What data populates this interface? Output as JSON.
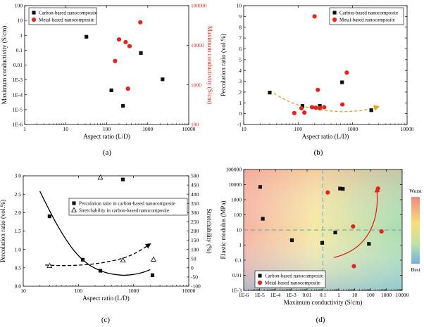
{
  "colors": {
    "black": "#111111",
    "red": "#e1261c",
    "orange": "#e8a317",
    "guide": "#5aa0b8"
  },
  "chart_data": [
    {
      "panel": "a",
      "caption": "(a)",
      "type": "scatter",
      "xlabel": "Aspect ratio (L/D)",
      "ylabel": "Maximum conductivity (S/cm)",
      "y2label": "Maximum conductivity (S/cm)",
      "xscale": "log",
      "xlim": [
        1,
        10000
      ],
      "xticks": [
        {
          "v": 1,
          "t": "1"
        },
        {
          "v": 10,
          "t": "10"
        },
        {
          "v": 100,
          "t": "100"
        },
        {
          "v": 1000,
          "t": "1000"
        },
        {
          "v": 10000,
          "t": "10000"
        }
      ],
      "yscale": "log",
      "ylim": [
        1e-06,
        100
      ],
      "yticks": [
        {
          "v": 1e-06,
          "t": "1E-6"
        },
        {
          "v": 1e-05,
          "t": "1E-5"
        },
        {
          "v": 0.0001,
          "t": "1E-4"
        },
        {
          "v": 0.001,
          "t": "1E-3"
        },
        {
          "v": 0.01,
          "t": "0.01"
        },
        {
          "v": 0.1,
          "t": "0.1"
        },
        {
          "v": 1,
          "t": "1"
        },
        {
          "v": 10,
          "t": "10"
        },
        {
          "v": 100,
          "t": "100"
        }
      ],
      "y2scale": "log",
      "y2lim": [
        100,
        100000
      ],
      "y2ticks": [
        {
          "v": 100,
          "t": "100"
        },
        {
          "v": 1000,
          "t": "1000"
        },
        {
          "v": 10000,
          "t": "10000"
        },
        {
          "v": 100000,
          "t": "100000"
        }
      ],
      "legend": [
        "Carbon-based nanocomposite",
        "Metal-based nanocomposite"
      ],
      "series": [
        {
          "name": "Carbon-based nanocomposite",
          "axis": "left",
          "marker": "square",
          "color": "black",
          "points": [
            [
              32,
              0.8
            ],
            [
              130,
              0.0002
            ],
            [
              250,
              1.8e-05
            ],
            [
              680,
              0.065
            ],
            [
              2300,
              0.0011
            ]
          ]
        },
        {
          "name": "Metal-based nanocomposite",
          "axis": "right",
          "marker": "circle",
          "color": "red",
          "points": [
            [
              160,
              4000
            ],
            [
              200,
              14000
            ],
            [
              290,
              12000
            ],
            [
              360,
              9500
            ],
            [
              660,
              38000
            ],
            [
              330,
              800
            ]
          ]
        }
      ]
    },
    {
      "panel": "b",
      "caption": "(b)",
      "type": "scatter",
      "xlabel": "Aspect ratio (L/D)",
      "ylabel": "Percolation ratio (vol.%)",
      "xscale": "log",
      "xlim": [
        10,
        10000
      ],
      "xticks": [
        {
          "v": 10,
          "t": "10"
        },
        {
          "v": 100,
          "t": "100"
        },
        {
          "v": 1000,
          "t": "1000"
        },
        {
          "v": 10000,
          "t": "10000"
        }
      ],
      "yscale": "linear",
      "ylim": [
        -1,
        10
      ],
      "yticks": [
        {
          "v": -1,
          "t": "-1"
        },
        {
          "v": 0,
          "t": "0"
        },
        {
          "v": 1,
          "t": "1"
        },
        {
          "v": 2,
          "t": "2"
        },
        {
          "v": 3,
          "t": "3"
        },
        {
          "v": 4,
          "t": "4"
        },
        {
          "v": 5,
          "t": "5"
        },
        {
          "v": 6,
          "t": "6"
        },
        {
          "v": 7,
          "t": "7"
        },
        {
          "v": 8,
          "t": "8"
        },
        {
          "v": 9,
          "t": "9"
        },
        {
          "v": 10,
          "t": "10"
        }
      ],
      "legend": [
        "Carbon-based nanocomposite",
        "Metal-based nanocomposite"
      ],
      "series": [
        {
          "name": "Carbon-based nanocomposite",
          "marker": "square",
          "color": "black",
          "points": [
            [
              30,
              1.95
            ],
            [
              120,
              0.72
            ],
            [
              250,
              0.72
            ],
            [
              640,
              2.9
            ],
            [
              2200,
              0.32
            ]
          ]
        },
        {
          "name": "Metal-based nanocomposite",
          "marker": "circle",
          "color": "red",
          "points": [
            [
              85,
              0.05
            ],
            [
              115,
              0.5
            ],
            [
              130,
              0.1
            ],
            [
              180,
              0.6
            ],
            [
              200,
              9.0
            ],
            [
              210,
              0.55
            ],
            [
              230,
              2.2
            ],
            [
              250,
              0.5
            ],
            [
              300,
              0.6
            ],
            [
              650,
              0.85
            ],
            [
              780,
              3.8
            ]
          ]
        }
      ],
      "trend": {
        "color": "orange",
        "style": "dashed",
        "x": [
          30,
          60,
          100,
          200,
          400,
          700,
          1200,
          2000,
          3000
        ],
        "y": [
          2.1,
          1.25,
          0.8,
          0.45,
          0.25,
          0.2,
          0.25,
          0.42,
          0.65
        ]
      }
    },
    {
      "panel": "c",
      "caption": "(c)",
      "type": "scatter",
      "xlabel": "Aspect ratio (L/D)",
      "ylabel": "Percolation ratio (vol.%)",
      "y2label": "Stretchability (%)",
      "xscale": "log",
      "xlim": [
        10,
        10000
      ],
      "xticks": [
        {
          "v": 10,
          "t": "10"
        },
        {
          "v": 100,
          "t": "100"
        },
        {
          "v": 1000,
          "t": "1000"
        },
        {
          "v": 10000,
          "t": "10000"
        }
      ],
      "yscale": "linear",
      "ylim": [
        0,
        3.0
      ],
      "yticks": [
        {
          "v": 0,
          "t": "0.0"
        },
        {
          "v": 0.5,
          "t": "0.5"
        },
        {
          "v": 1.0,
          "t": "1.0"
        },
        {
          "v": 1.5,
          "t": "1.5"
        },
        {
          "v": 2.0,
          "t": "2.0"
        },
        {
          "v": 2.5,
          "t": "2.5"
        },
        {
          "v": 3.0,
          "t": "3.0"
        }
      ],
      "y2scale": "linear",
      "y2lim": [
        -100,
        500
      ],
      "y2ticks": [
        {
          "v": -100,
          "t": "-100"
        },
        {
          "v": -50,
          "t": "-50"
        },
        {
          "v": 0,
          "t": "0"
        },
        {
          "v": 50,
          "t": "50"
        },
        {
          "v": 100,
          "t": "100"
        },
        {
          "v": 150,
          "t": "150"
        },
        {
          "v": 200,
          "t": "200"
        },
        {
          "v": 250,
          "t": "250"
        },
        {
          "v": 300,
          "t": "300"
        },
        {
          "v": 350,
          "t": "350"
        },
        {
          "v": 400,
          "t": "400"
        },
        {
          "v": 450,
          "t": "450"
        },
        {
          "v": 500,
          "t": "500"
        }
      ],
      "legend": [
        "Percolation ratio in carbon-based nanocomposite",
        "Stretchability in carbon-based nanocomposite"
      ],
      "series": [
        {
          "name": "Percolation ratio in carbon-based nanocomposite",
          "axis": "left",
          "marker": "square",
          "color": "black",
          "points": [
            [
              30,
              1.9
            ],
            [
              120,
              0.72
            ],
            [
              250,
              0.42
            ],
            [
              640,
              2.9
            ],
            [
              2200,
              0.3
            ]
          ]
        },
        {
          "name": "Stretchability in carbon-based nanocomposite",
          "axis": "right",
          "marker": "triangle",
          "color": "black",
          "points": [
            [
              30,
              10
            ],
            [
              250,
              490
            ],
            [
              640,
              40
            ],
            [
              2300,
              45
            ]
          ]
        }
      ],
      "trends": [
        {
          "axis": "left",
          "style": "solid",
          "x": [
            20,
            40,
            80,
            150,
            300,
            600,
            1000,
            1500,
            2000
          ],
          "y": [
            2.58,
            1.7,
            1.0,
            0.6,
            0.38,
            0.3,
            0.32,
            0.38,
            0.45
          ]
        },
        {
          "axis": "right",
          "style": "dashed",
          "arrow": true,
          "x": [
            25,
            60,
            150,
            300,
            600,
            1000,
            1500,
            2000
          ],
          "y": [
            15,
            12,
            18,
            30,
            50,
            75,
            105,
            130
          ]
        }
      ]
    },
    {
      "panel": "d",
      "caption": "(d)",
      "type": "scatter",
      "xlabel": "Maximum conductivity (S/cm)",
      "ylabel": "Elastic modulus (MPa)",
      "xscale": "log",
      "xlim": [
        1e-06,
        10000
      ],
      "xticks": [
        {
          "v": 1e-06,
          "t": "1E-6"
        },
        {
          "v": 1e-05,
          "t": "1E-5"
        },
        {
          "v": 0.0001,
          "t": "1E-4"
        },
        {
          "v": 0.001,
          "t": "1E-3"
        },
        {
          "v": 0.01,
          "t": "0.01"
        },
        {
          "v": 0.1,
          "t": "0.1"
        },
        {
          "v": 1,
          "t": "1"
        },
        {
          "v": 10,
          "t": "10"
        },
        {
          "v": 100,
          "t": "100"
        },
        {
          "v": 1000,
          "t": "1000"
        },
        {
          "v": 10000,
          "t": "10000"
        }
      ],
      "yscale": "log",
      "ylim": [
        0.001,
        100000
      ],
      "yticks": [
        {
          "v": 0.001,
          "t": "1E-3"
        },
        {
          "v": 0.01,
          "t": "0.01"
        },
        {
          "v": 0.1,
          "t": "0.1"
        },
        {
          "v": 1,
          "t": "1"
        },
        {
          "v": 10,
          "t": "10"
        },
        {
          "v": 100,
          "t": "100"
        },
        {
          "v": 1000,
          "t": "1000"
        },
        {
          "v": 10000,
          "t": "10000"
        },
        {
          "v": 100000,
          "t": "100000"
        }
      ],
      "colorbar": {
        "top": "Worst",
        "bottom": "Best"
      },
      "guides": {
        "x": 0.1,
        "y": 10
      },
      "legend": [
        "Carbon-based nanocomposite",
        "Metal-based nanocomposite"
      ],
      "series": [
        {
          "name": "Carbon-based nanocomposite",
          "marker": "square",
          "color": "black",
          "points": [
            [
              1.1e-05,
              7000
            ],
            [
              1.6e-05,
              55
            ],
            [
              0.0011,
              2.1
            ],
            [
              0.09,
              1.4
            ],
            [
              0.6,
              6.8
            ],
            [
              1.2,
              5500
            ],
            [
              1.8,
              5200
            ],
            [
              80,
              1.2
            ]
          ]
        },
        {
          "name": "Metal-based nanocomposite",
          "marker": "circle",
          "color": "red",
          "points": [
            [
              0.2,
              3000
            ],
            [
              8,
              17
            ],
            [
              9,
              0.04
            ],
            [
              300,
              5500
            ],
            [
              500,
              8
            ]
          ]
        }
      ]
    }
  ]
}
